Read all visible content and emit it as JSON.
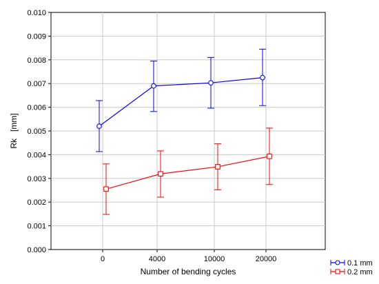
{
  "chart_data": {
    "type": "line",
    "xlabel": "Number of bending cycles",
    "ylabel": "Rk   [mm]",
    "categories": [
      "0",
      "4000",
      "10000",
      "20000"
    ],
    "ylim": [
      0,
      0.01
    ],
    "yticks": [
      "0.000",
      "0.001",
      "0.002",
      "0.003",
      "0.004",
      "0.005",
      "0.006",
      "0.007",
      "0.008",
      "0.009",
      "0.010"
    ],
    "grid": true,
    "legend_position": "bottom-right",
    "series": [
      {
        "name": "0.1 mm",
        "color": "#0000ff",
        "marker": "circle",
        "values": [
          0.0052,
          0.0069,
          0.00703,
          0.00725
        ],
        "err_low": [
          0.00413,
          0.00582,
          0.00596,
          0.00607
        ],
        "err_high": [
          0.00628,
          0.00795,
          0.0081,
          0.00845
        ]
      },
      {
        "name": "0.2 mm",
        "color": "#ff0000",
        "marker": "square",
        "values": [
          0.00255,
          0.00319,
          0.00349,
          0.00393
        ],
        "err_low": [
          0.00148,
          0.00221,
          0.00252,
          0.00274
        ],
        "err_high": [
          0.00361,
          0.00416,
          0.00446,
          0.00512
        ]
      }
    ]
  }
}
